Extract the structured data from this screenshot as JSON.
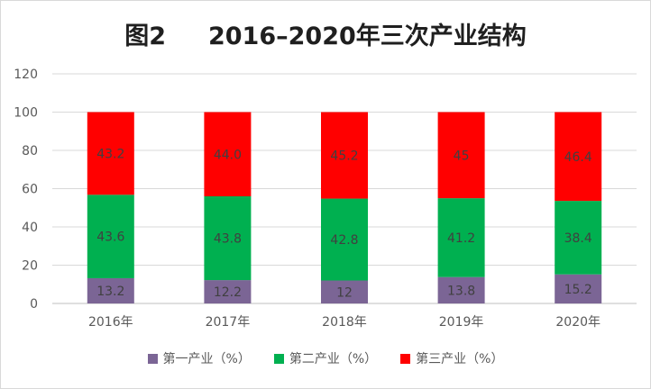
{
  "chart_data": {
    "type": "bar",
    "stacked": true,
    "title": "图2     2016–2020年三次产业结构",
    "categories": [
      "2016年",
      "2017年",
      "2018年",
      "2019年",
      "2020年"
    ],
    "series": [
      {
        "name": "第一产业（%）",
        "color": "#7b6595",
        "values": [
          13.2,
          12.2,
          12,
          13.8,
          15.2
        ],
        "labels": [
          "13.2",
          "12.2",
          "12",
          "13.8",
          "15.2"
        ]
      },
      {
        "name": "第二产业（%）",
        "color": "#00b050",
        "values": [
          43.6,
          43.8,
          42.8,
          41.2,
          38.4
        ],
        "labels": [
          "43.6",
          "43.8",
          "42.8",
          "41.2",
          "38.4"
        ]
      },
      {
        "name": "第三产业（%）",
        "color": "#ff0000",
        "values": [
          43.2,
          44.0,
          45.2,
          45,
          46.4
        ],
        "labels": [
          "43.2",
          "44.0",
          "45.2",
          "45",
          "46.4"
        ]
      }
    ],
    "yticks": [
      "0",
      "20",
      "40",
      "60",
      "80",
      "100",
      "120"
    ],
    "ylim": [
      0,
      120
    ],
    "grid": true,
    "legend_position": "bottom"
  }
}
